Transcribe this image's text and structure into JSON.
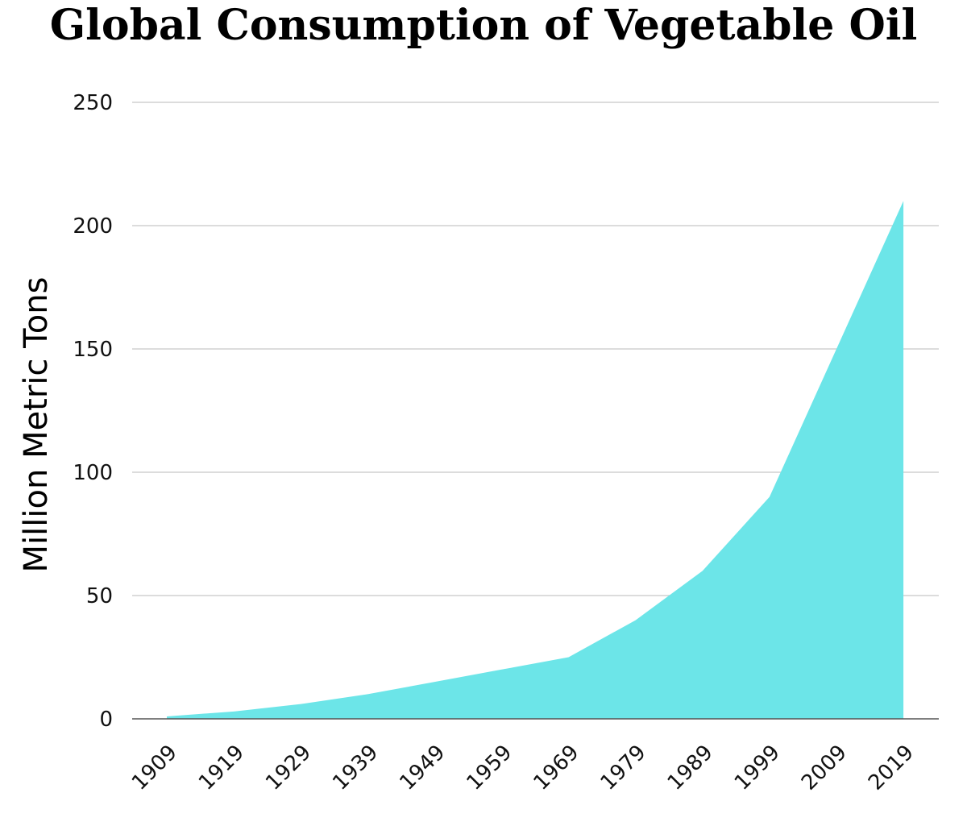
{
  "chart_data": {
    "type": "area",
    "title": "Global Consumption of Vegetable Oil",
    "xlabel": "",
    "ylabel": "Million Metric Tons",
    "x": [
      "1909",
      "1919",
      "1929",
      "1939",
      "1949",
      "1959",
      "1969",
      "1979",
      "1989",
      "1999",
      "2009",
      "2019"
    ],
    "series": [
      {
        "values": [
          1,
          3,
          6,
          10,
          15,
          20,
          25,
          40,
          60,
          90,
          150,
          210
        ]
      }
    ],
    "ylim": [
      0,
      250
    ],
    "yticks": [
      0,
      50,
      100,
      150,
      200,
      250
    ],
    "grid": true,
    "colors": {
      "fill": "#6ce5e8",
      "grid": "#c8c8c8",
      "axis": "#555555"
    }
  }
}
